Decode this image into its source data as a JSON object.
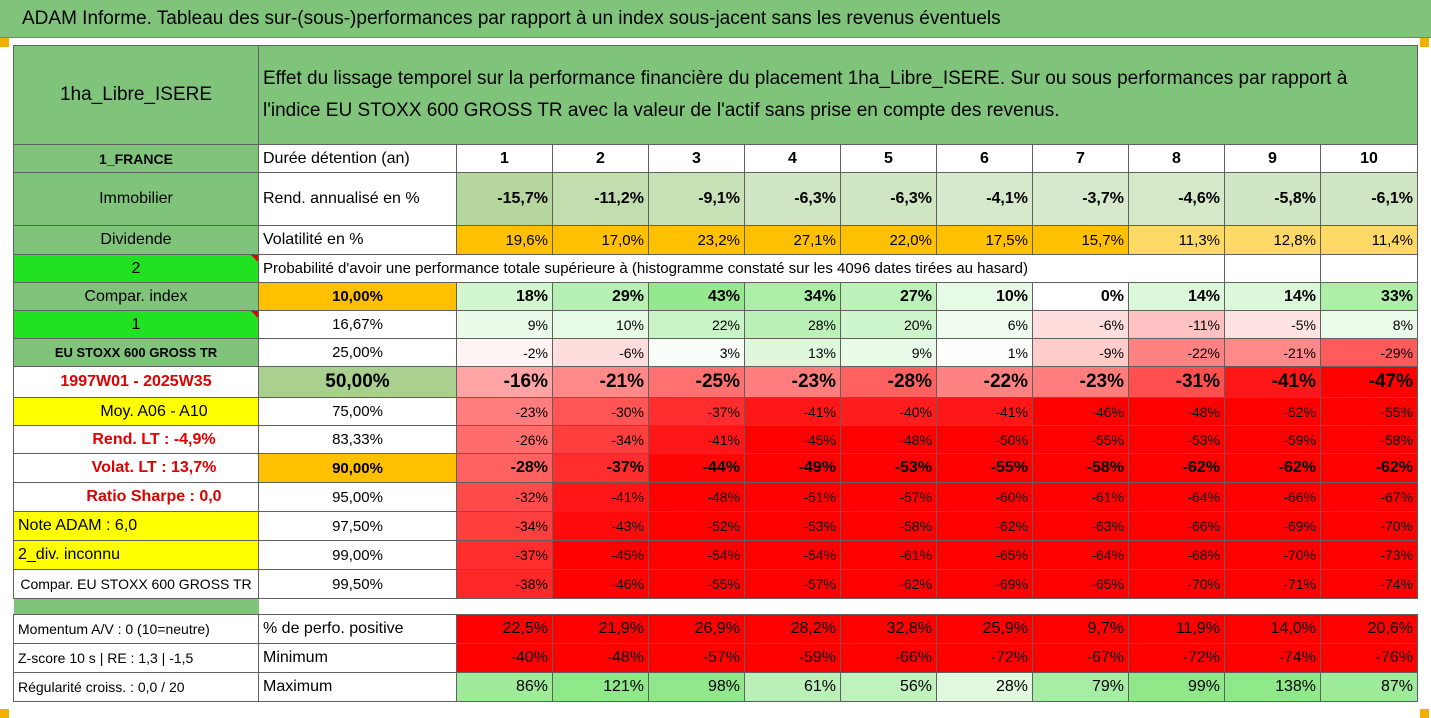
{
  "title": "ADAM Informe. Tableau des sur-(sous-)performances par rapport à un index sous-jacent sans les revenus éventuels",
  "header": {
    "fund_name": "1ha_Libre_ISERE",
    "description_line1": "Effet du lissage temporel sur la performance financière du placement 1ha_Libre_ISERE. Sur ou sous performances par rapport à",
    "description_line2": "l'indice EU STOXX 600 GROSS TR avec la valeur de l'actif sans prise en compte des revenus."
  },
  "left_panel": {
    "country": "1_FRANCE",
    "category": "Immobilier",
    "subcategory": "Dividende",
    "indicator_2": "2",
    "compar_index": "Compar. index",
    "indicator_1": "1",
    "index_name": "EU STOXX 600 GROSS TR",
    "period": "1997W01 - 2025W35",
    "moy": "Moy. A06 - A10",
    "rend_lt": "Rend. LT :   -4,9%",
    "volat_lt": "Volat. LT :   13,7%",
    "ratio_sharpe": "Ratio Sharpe :   0,0",
    "note_adam": "Note ADAM : 6,0",
    "div": "2_div. inconnu",
    "compar_eu": "Compar. EU STOXX 600 GROSS TR",
    "momentum": "Momentum A/V : 0 (10=neutre)",
    "zscore": "Z-score 10 s  |  RE : 1,3  |  -1,5",
    "regularite": "Régularité croiss. : 0,0 / 20"
  },
  "labels": {
    "duree": "Durée détention (an)",
    "rend": "Rend. annualisé en %",
    "volat": "Volatilité en %",
    "proba": "Probabilité d'avoir une performance totale supérieure à (histogramme constaté sur les 4096 dates tirées au hasard)",
    "perf_positive": "% de perfo. positive",
    "minimum": "Minimum",
    "maximum": "Maximum"
  },
  "years": [
    "1",
    "2",
    "3",
    "4",
    "5",
    "6",
    "7",
    "8",
    "9",
    "10"
  ],
  "rend": [
    "-15,7%",
    "-11,2%",
    "-9,1%",
    "-6,3%",
    "-6,3%",
    "-4,1%",
    "-3,7%",
    "-4,6%",
    "-5,8%",
    "-6,1%"
  ],
  "volat": [
    "19,6%",
    "17,0%",
    "23,2%",
    "27,1%",
    "22,0%",
    "17,5%",
    "15,7%",
    "11,3%",
    "12,8%",
    "11,4%"
  ],
  "percentile_rows": [
    {
      "pct": "10,00%",
      "values": [
        "18%",
        "29%",
        "43%",
        "34%",
        "27%",
        "10%",
        "0%",
        "14%",
        "14%",
        "33%"
      ]
    },
    {
      "pct": "16,67%",
      "values": [
        "9%",
        "10%",
        "22%",
        "28%",
        "20%",
        "6%",
        "-6%",
        "-11%",
        "-5%",
        "8%"
      ]
    },
    {
      "pct": "25,00%",
      "values": [
        "-2%",
        "-6%",
        "3%",
        "13%",
        "9%",
        "1%",
        "-9%",
        "-22%",
        "-21%",
        "-29%"
      ]
    },
    {
      "pct": "50,00%",
      "values": [
        "-16%",
        "-21%",
        "-25%",
        "-23%",
        "-28%",
        "-22%",
        "-23%",
        "-31%",
        "-41%",
        "-47%"
      ]
    },
    {
      "pct": "75,00%",
      "values": [
        "-23%",
        "-30%",
        "-37%",
        "-41%",
        "-40%",
        "-41%",
        "-46%",
        "-48%",
        "-52%",
        "-55%"
      ]
    },
    {
      "pct": "83,33%",
      "values": [
        "-26%",
        "-34%",
        "-41%",
        "-45%",
        "-48%",
        "-50%",
        "-55%",
        "-53%",
        "-59%",
        "-58%"
      ]
    },
    {
      "pct": "90,00%",
      "values": [
        "-28%",
        "-37%",
        "-44%",
        "-49%",
        "-53%",
        "-55%",
        "-58%",
        "-62%",
        "-62%",
        "-62%"
      ]
    },
    {
      "pct": "95,00%",
      "values": [
        "-32%",
        "-41%",
        "-48%",
        "-51%",
        "-57%",
        "-60%",
        "-61%",
        "-64%",
        "-66%",
        "-67%"
      ]
    },
    {
      "pct": "97,50%",
      "values": [
        "-34%",
        "-43%",
        "-52%",
        "-53%",
        "-58%",
        "-62%",
        "-63%",
        "-66%",
        "-69%",
        "-70%"
      ]
    },
    {
      "pct": "99,00%",
      "values": [
        "-37%",
        "-45%",
        "-54%",
        "-54%",
        "-61%",
        "-65%",
        "-64%",
        "-68%",
        "-70%",
        "-73%"
      ]
    },
    {
      "pct": "99,50%",
      "values": [
        "-38%",
        "-46%",
        "-55%",
        "-57%",
        "-62%",
        "-69%",
        "-65%",
        "-70%",
        "-71%",
        "-74%"
      ]
    }
  ],
  "perf_positive": [
    "22,5%",
    "21,9%",
    "26,9%",
    "28,2%",
    "32,8%",
    "25,9%",
    "9,7%",
    "11,9%",
    "14,0%",
    "20,6%"
  ],
  "minimum": [
    "-40%",
    "-48%",
    "-57%",
    "-59%",
    "-66%",
    "-72%",
    "-67%",
    "-72%",
    "-74%",
    "-76%"
  ],
  "maximum": [
    "86%",
    "121%",
    "98%",
    "61%",
    "56%",
    "28%",
    "79%",
    "99%",
    "138%",
    "87%"
  ],
  "colors": {
    "header_green": "#7fc47a",
    "bright_green": "#22e022",
    "yellow": "#ffff00",
    "orange": "#ffc000",
    "red": "#ff0000",
    "light_green": "#c6e0b4"
  }
}
